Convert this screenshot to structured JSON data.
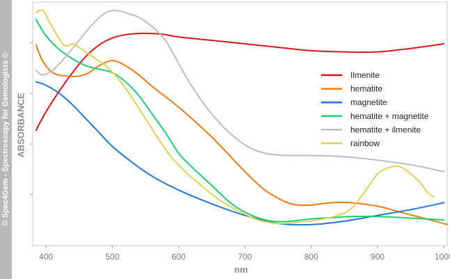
{
  "sidebar_text": "© Spec4Gem - Spectroscopy for Gemologists ©",
  "chart_data": {
    "type": "line",
    "title": "",
    "xlabel": "nm",
    "ylabel": "ABSORBANCE",
    "xlim": [
      380,
      1005
    ],
    "ylim": [
      0,
      1
    ],
    "x_ticks": [
      400,
      500,
      600,
      700,
      800,
      900,
      1000
    ],
    "x_tick_labels": [
      "400",
      "500",
      "600",
      "700",
      "800",
      "900",
      "1000"
    ],
    "y_ticks": [
      0.2,
      0.42,
      0.64,
      0.86
    ],
    "grid": false,
    "legend_position": "right",
    "series": [
      {
        "name": "Ilmenite",
        "color": "#dd1515",
        "points": [
          [
            385,
            0.48
          ],
          [
            400,
            0.56
          ],
          [
            420,
            0.65
          ],
          [
            440,
            0.73
          ],
          [
            460,
            0.8
          ],
          [
            480,
            0.85
          ],
          [
            500,
            0.88
          ],
          [
            520,
            0.895
          ],
          [
            540,
            0.9
          ],
          [
            560,
            0.9
          ],
          [
            580,
            0.895
          ],
          [
            600,
            0.885
          ],
          [
            650,
            0.87
          ],
          [
            700,
            0.855
          ],
          [
            750,
            0.84
          ],
          [
            800,
            0.825
          ],
          [
            850,
            0.82
          ],
          [
            900,
            0.82
          ],
          [
            950,
            0.835
          ],
          [
            1000,
            0.855
          ]
        ]
      },
      {
        "name": "hematite",
        "color": "#f07a16",
        "points": [
          [
            385,
            0.85
          ],
          [
            395,
            0.78
          ],
          [
            410,
            0.73
          ],
          [
            430,
            0.715
          ],
          [
            450,
            0.715
          ],
          [
            465,
            0.73
          ],
          [
            480,
            0.76
          ],
          [
            495,
            0.78
          ],
          [
            505,
            0.78
          ],
          [
            520,
            0.76
          ],
          [
            540,
            0.72
          ],
          [
            560,
            0.67
          ],
          [
            600,
            0.58
          ],
          [
            650,
            0.45
          ],
          [
            700,
            0.3
          ],
          [
            730,
            0.22
          ],
          [
            760,
            0.17
          ],
          [
            780,
            0.155
          ],
          [
            800,
            0.155
          ],
          [
            830,
            0.165
          ],
          [
            860,
            0.165
          ],
          [
            900,
            0.15
          ],
          [
            940,
            0.12
          ],
          [
            980,
            0.09
          ],
          [
            1005,
            0.07
          ]
        ]
      },
      {
        "name": "magnetite",
        "color": "#1e78dc",
        "points": [
          [
            385,
            0.69
          ],
          [
            400,
            0.675
          ],
          [
            420,
            0.64
          ],
          [
            440,
            0.59
          ],
          [
            460,
            0.53
          ],
          [
            480,
            0.47
          ],
          [
            500,
            0.41
          ],
          [
            530,
            0.34
          ],
          [
            560,
            0.28
          ],
          [
            600,
            0.22
          ],
          [
            650,
            0.16
          ],
          [
            700,
            0.11
          ],
          [
            750,
            0.075
          ],
          [
            800,
            0.07
          ],
          [
            850,
            0.085
          ],
          [
            900,
            0.11
          ],
          [
            950,
            0.135
          ],
          [
            1000,
            0.165
          ]
        ]
      },
      {
        "name": "hematite + magnetite",
        "color": "#1fcc72",
        "points": [
          [
            385,
            0.96
          ],
          [
            400,
            0.89
          ],
          [
            420,
            0.83
          ],
          [
            440,
            0.79
          ],
          [
            460,
            0.76
          ],
          [
            480,
            0.745
          ],
          [
            500,
            0.73
          ],
          [
            520,
            0.69
          ],
          [
            540,
            0.63
          ],
          [
            560,
            0.55
          ],
          [
            580,
            0.47
          ],
          [
            600,
            0.38
          ],
          [
            620,
            0.32
          ],
          [
            650,
            0.24
          ],
          [
            680,
            0.16
          ],
          [
            710,
            0.11
          ],
          [
            740,
            0.085
          ],
          [
            770,
            0.085
          ],
          [
            800,
            0.095
          ],
          [
            830,
            0.1
          ],
          [
            860,
            0.105
          ],
          [
            900,
            0.105
          ],
          [
            940,
            0.1
          ],
          [
            970,
            0.095
          ],
          [
            1000,
            0.09
          ]
        ]
      },
      {
        "name": "hematite + ilmenite",
        "color": "#bdbdbd",
        "points": [
          [
            385,
            0.74
          ],
          [
            395,
            0.72
          ],
          [
            410,
            0.74
          ],
          [
            430,
            0.8
          ],
          [
            450,
            0.87
          ],
          [
            470,
            0.94
          ],
          [
            490,
            0.99
          ],
          [
            505,
            1.0
          ],
          [
            520,
            0.99
          ],
          [
            540,
            0.97
          ],
          [
            560,
            0.93
          ],
          [
            580,
            0.87
          ],
          [
            600,
            0.77
          ],
          [
            620,
            0.67
          ],
          [
            650,
            0.55
          ],
          [
            680,
            0.46
          ],
          [
            710,
            0.4
          ],
          [
            740,
            0.375
          ],
          [
            770,
            0.37
          ],
          [
            800,
            0.37
          ],
          [
            850,
            0.365
          ],
          [
            900,
            0.35
          ],
          [
            950,
            0.33
          ],
          [
            1000,
            0.3
          ]
        ]
      },
      {
        "name": "rainbow",
        "color": "#ded15a",
        "points": [
          [
            385,
            0.99
          ],
          [
            390,
            1.0
          ],
          [
            397,
            0.995
          ],
          [
            405,
            0.95
          ],
          [
            415,
            0.9
          ],
          [
            425,
            0.855
          ],
          [
            432,
            0.845
          ],
          [
            440,
            0.855
          ],
          [
            450,
            0.84
          ],
          [
            460,
            0.82
          ],
          [
            475,
            0.79
          ],
          [
            490,
            0.76
          ],
          [
            510,
            0.7
          ],
          [
            530,
            0.62
          ],
          [
            550,
            0.53
          ],
          [
            570,
            0.44
          ],
          [
            590,
            0.36
          ],
          [
            610,
            0.3
          ],
          [
            630,
            0.25
          ],
          [
            660,
            0.18
          ],
          [
            690,
            0.13
          ],
          [
            720,
            0.09
          ],
          [
            750,
            0.075
          ],
          [
            780,
            0.08
          ],
          [
            810,
            0.09
          ],
          [
            840,
            0.11
          ],
          [
            860,
            0.14
          ],
          [
            880,
            0.21
          ],
          [
            900,
            0.29
          ],
          [
            920,
            0.32
          ],
          [
            935,
            0.32
          ],
          [
            950,
            0.29
          ],
          [
            965,
            0.25
          ],
          [
            975,
            0.21
          ],
          [
            985,
            0.19
          ]
        ]
      }
    ]
  }
}
